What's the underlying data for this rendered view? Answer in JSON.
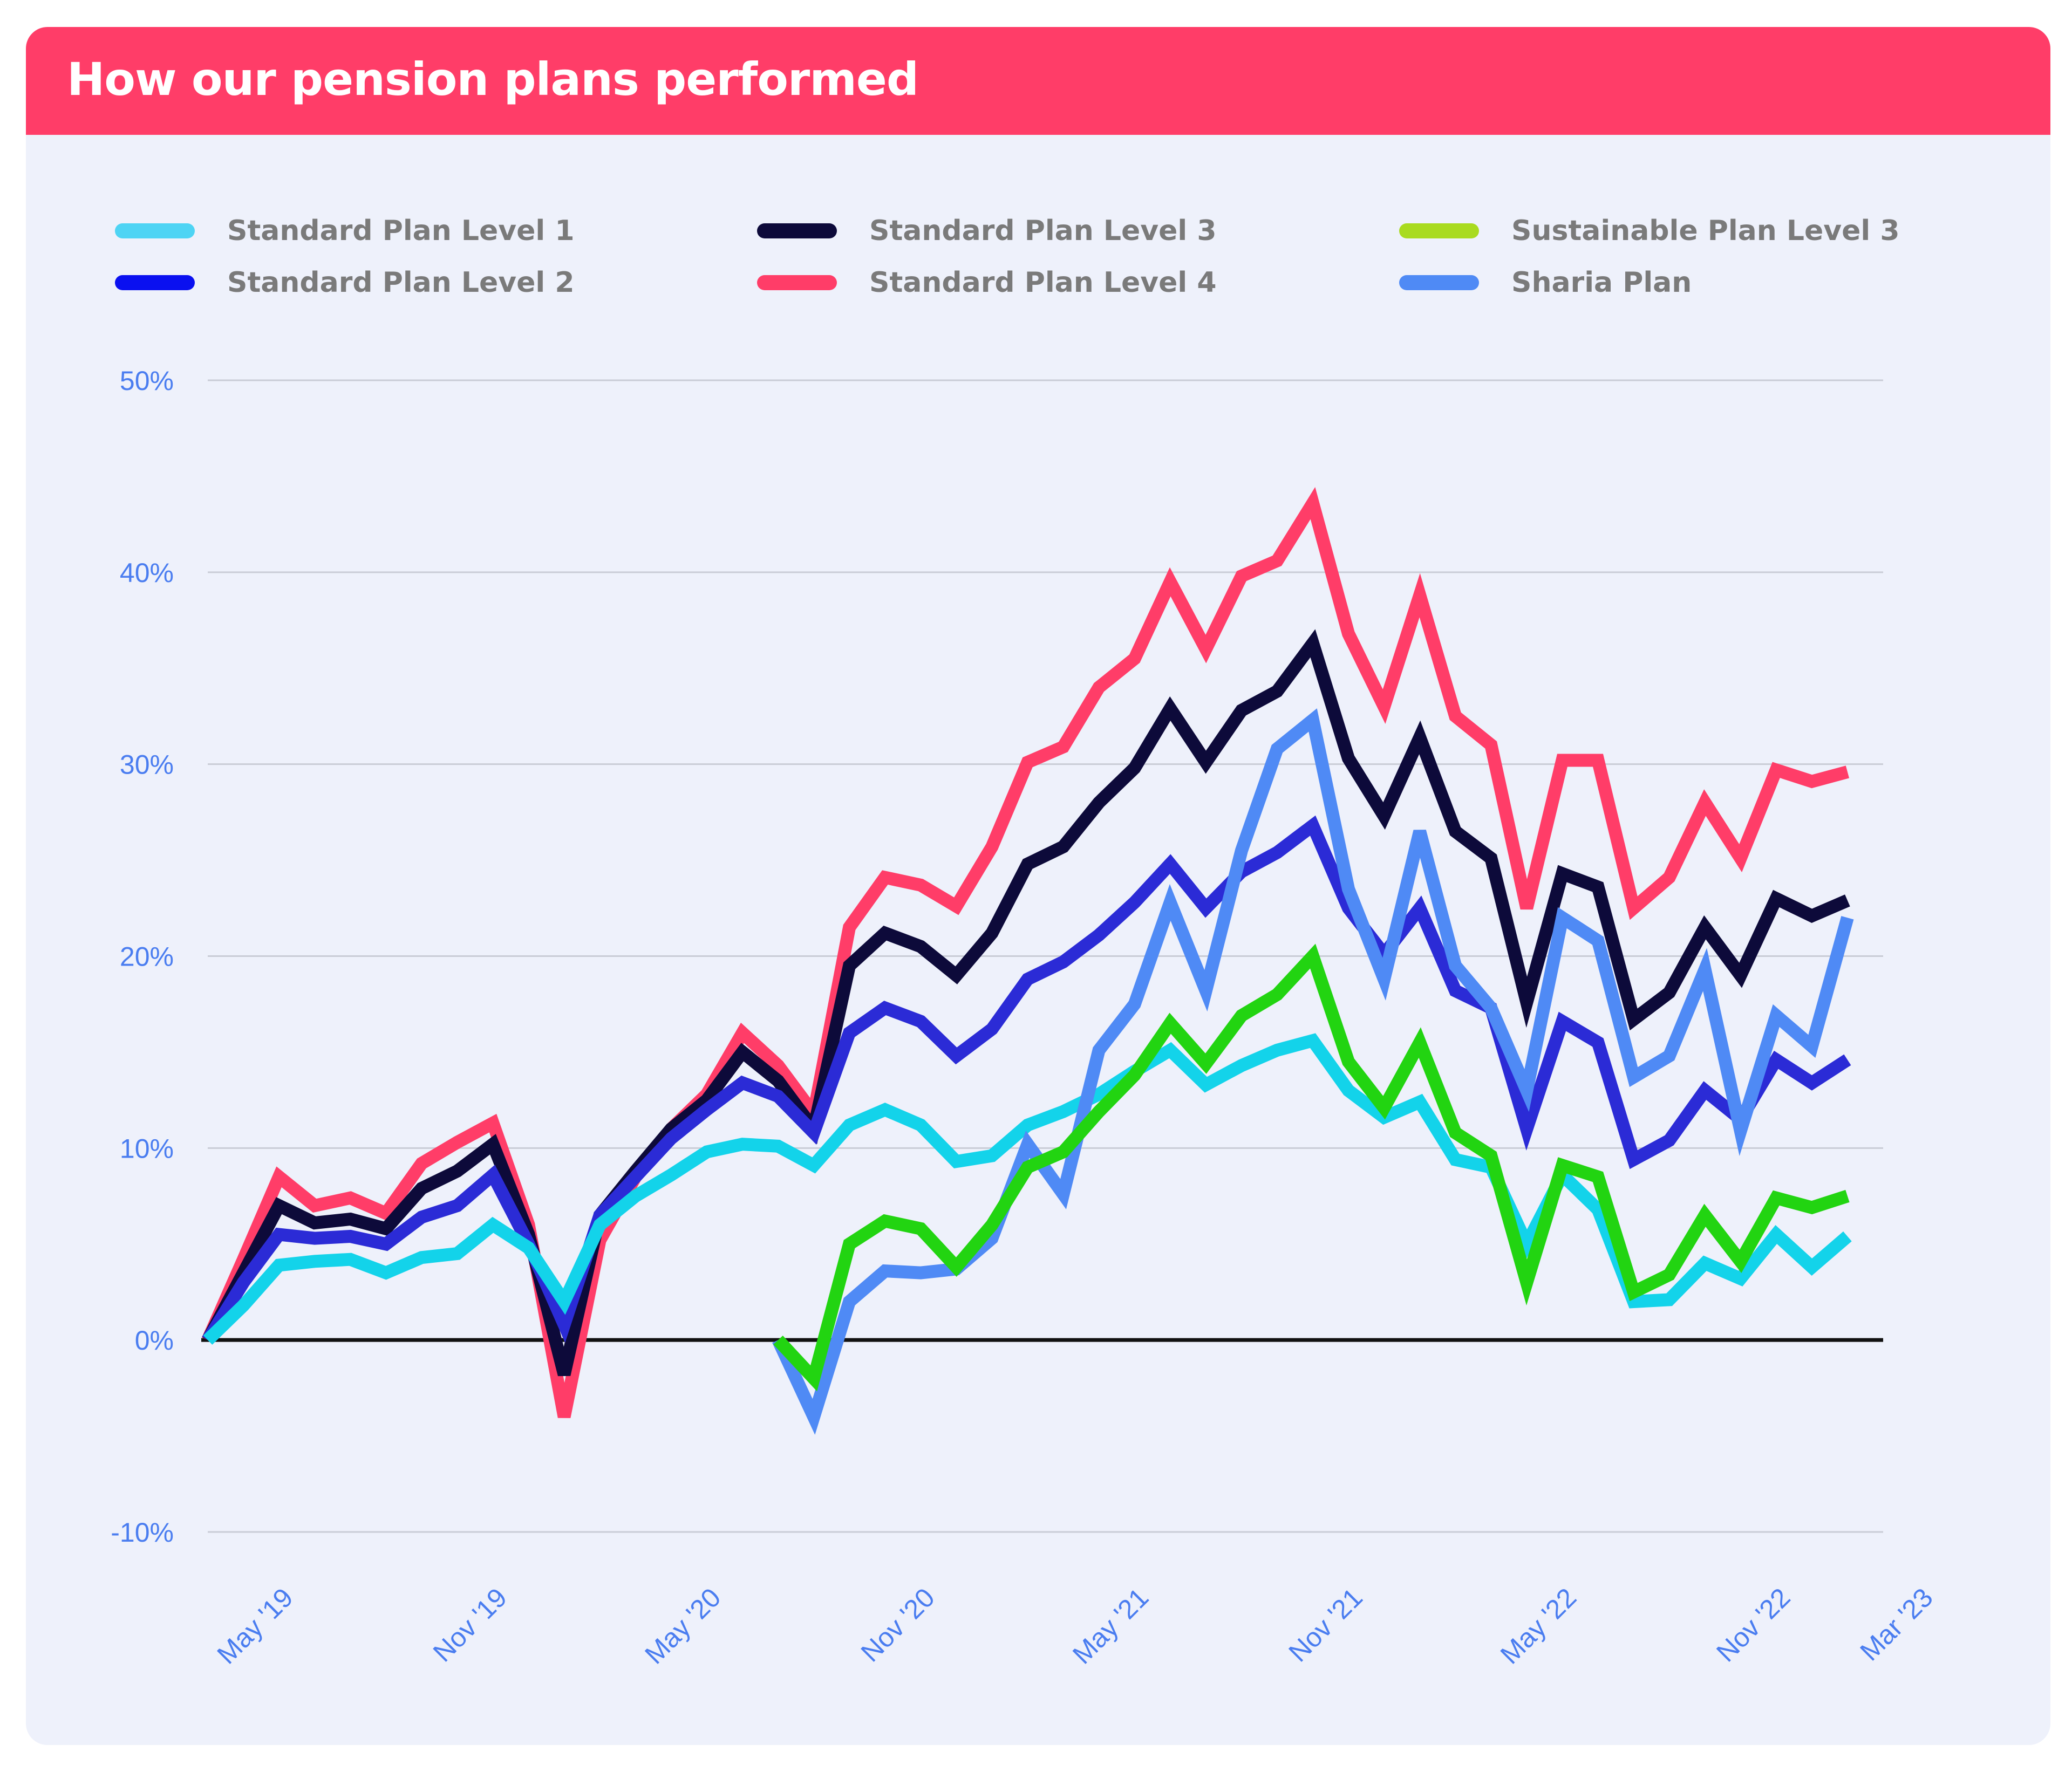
{
  "title": "How our pension plans performed",
  "chart_data": {
    "type": "line",
    "title": "How our pension plans performed",
    "xlabel": "",
    "ylabel": "",
    "ylim": [
      -10,
      50
    ],
    "yticks": [
      -10,
      0,
      10,
      20,
      30,
      40,
      50
    ],
    "ytick_labels": [
      "-10%",
      "0%",
      "10%",
      "20%",
      "30%",
      "40%",
      "50%"
    ],
    "x_months": [
      "Apr '19",
      "May '19",
      "Jun '19",
      "Jul '19",
      "Aug '19",
      "Sep '19",
      "Oct '19",
      "Nov '19",
      "Dec '19",
      "Jan '20",
      "Feb '20",
      "Mar '20",
      "Apr '20",
      "May '20",
      "Jun '20",
      "Jul '20",
      "Aug '20",
      "Sep '20",
      "Oct '20",
      "Nov '20",
      "Dec '20",
      "Jan '21",
      "Feb '21",
      "Mar '21",
      "Apr '21",
      "May '21",
      "Jun '21",
      "Jul '21",
      "Aug '21",
      "Sep '21",
      "Oct '21",
      "Nov '21",
      "Dec '21",
      "Jan '22",
      "Feb '22",
      "Mar '22",
      "Apr '22",
      "May '22",
      "Jun '22",
      "Jul '22",
      "Aug '22",
      "Sep '22",
      "Oct '22",
      "Nov '22",
      "Dec '22",
      "Jan '23",
      "Feb '23",
      "Mar '23"
    ],
    "x_tick_labels": [
      {
        "month_index": 1,
        "label": "May '19"
      },
      {
        "month_index": 7,
        "label": "Nov '19"
      },
      {
        "month_index": 13,
        "label": "May '20"
      },
      {
        "month_index": 19,
        "label": "Nov '20"
      },
      {
        "month_index": 25,
        "label": "May '21"
      },
      {
        "month_index": 31,
        "label": "Nov '21"
      },
      {
        "month_index": 37,
        "label": "May '22"
      },
      {
        "month_index": 43,
        "label": "Nov '22"
      },
      {
        "month_index": 47,
        "label": "Mar '23"
      }
    ],
    "zero_line": true,
    "grid": true,
    "legend_position": "top",
    "series": [
      {
        "name": "Standard Plan Level 4",
        "color": "#ff3d68",
        "start_index": 0,
        "values": [
          0,
          4.2,
          8.5,
          7.0,
          7.4,
          6.6,
          9.2,
          10.3,
          11.3,
          6.0,
          -4.0,
          5.2,
          8.5,
          11.0,
          12.8,
          16.0,
          14.3,
          11.8,
          21.5,
          24.1,
          23.7,
          22.6,
          25.7,
          30.1,
          30.9,
          34.0,
          35.5,
          39.5,
          36.0,
          39.8,
          40.6,
          43.6,
          36.8,
          33.0,
          38.8,
          32.5,
          31.0,
          22.5,
          30.2,
          30.2,
          22.5,
          24.1,
          28.0,
          25.1,
          29.7,
          29.1,
          29.6
        ]
      },
      {
        "name": "Standard Plan Level 3",
        "color": "#0d0a3a",
        "start_index": 0,
        "values": [
          0,
          3.5,
          7.0,
          6.1,
          6.3,
          5.8,
          7.9,
          8.8,
          10.2,
          5.5,
          -1.8,
          6.5,
          8.8,
          11.0,
          12.5,
          15.0,
          13.5,
          11.0,
          19.5,
          21.2,
          20.5,
          19.0,
          21.2,
          24.8,
          25.7,
          28.0,
          29.8,
          32.9,
          30.1,
          32.8,
          33.8,
          36.3,
          30.3,
          27.3,
          31.4,
          26.5,
          25.1,
          17.6,
          24.3,
          23.6,
          16.7,
          18.1,
          21.5,
          19.0,
          23.0,
          22.1,
          22.9
        ]
      },
      {
        "name": "Standard Plan Level 2",
        "color": "#2b2bd6",
        "start_index": 0,
        "values": [
          0,
          3.0,
          5.5,
          5.3,
          5.4,
          5.0,
          6.4,
          7.0,
          8.6,
          5.0,
          0.8,
          6.5,
          8.5,
          10.5,
          12.0,
          13.4,
          12.7,
          10.8,
          16.0,
          17.3,
          16.6,
          14.8,
          16.2,
          18.8,
          19.7,
          21.1,
          22.8,
          24.8,
          22.5,
          24.4,
          25.4,
          26.8,
          22.5,
          20.1,
          22.5,
          18.2,
          17.3,
          11.0,
          16.6,
          15.5,
          9.4,
          10.4,
          13.0,
          11.5,
          14.6,
          13.4,
          14.6
        ]
      },
      {
        "name": "Standard Plan Level 1",
        "color": "#13d3ea",
        "start_index": 0,
        "values": [
          0,
          1.8,
          3.9,
          4.1,
          4.2,
          3.5,
          4.3,
          4.5,
          6.0,
          4.8,
          2.0,
          6.0,
          7.5,
          8.6,
          9.8,
          10.2,
          10.1,
          9.1,
          11.2,
          12.0,
          11.2,
          9.3,
          9.6,
          11.2,
          11.9,
          12.8,
          14.0,
          15.1,
          13.3,
          14.3,
          15.1,
          15.6,
          13.0,
          11.6,
          12.4,
          9.4,
          9.0,
          5.0,
          8.6,
          6.8,
          2.0,
          2.1,
          4.0,
          3.2,
          5.5,
          3.8,
          5.4
        ]
      },
      {
        "name": "Sharia Plan",
        "color": "#4f8af5",
        "start_index": 16,
        "values": [
          0,
          -4.0,
          2.0,
          3.6,
          3.5,
          3.7,
          5.3,
          10.2,
          7.6,
          15.1,
          17.5,
          22.8,
          18.2,
          25.5,
          30.8,
          32.3,
          23.5,
          18.8,
          26.5,
          19.5,
          17.3,
          13.0,
          22.0,
          20.8,
          13.7,
          14.8,
          19.3,
          10.9,
          16.9,
          15.3,
          22.0
        ]
      },
      {
        "name": "Sustainable Plan Level 3",
        "color": "#22d411",
        "start_index": 16,
        "values": [
          0,
          -2.0,
          5.0,
          6.2,
          5.8,
          3.8,
          6.0,
          9.0,
          9.8,
          11.9,
          13.8,
          16.5,
          14.4,
          16.9,
          18.0,
          20.0,
          14.5,
          12.1,
          15.5,
          10.8,
          9.6,
          3.0,
          9.1,
          8.5,
          2.5,
          3.4,
          6.5,
          4.1,
          7.4,
          6.9,
          7.5
        ]
      }
    ]
  },
  "legend": [
    {
      "label": "Standard Plan Level 1",
      "color": "#4ed4f4"
    },
    {
      "label": "Standard Plan Level 2",
      "color": "#0a10f0"
    },
    {
      "label": "Standard Plan Level 3",
      "color": "#0d0a3a"
    },
    {
      "label": "Standard Plan Level 4",
      "color": "#ff3d68"
    },
    {
      "label": "Sustainable Plan Level 3",
      "color": "#a9db1f"
    },
    {
      "label": "Sharia Plan",
      "color": "#4f8af5"
    }
  ]
}
